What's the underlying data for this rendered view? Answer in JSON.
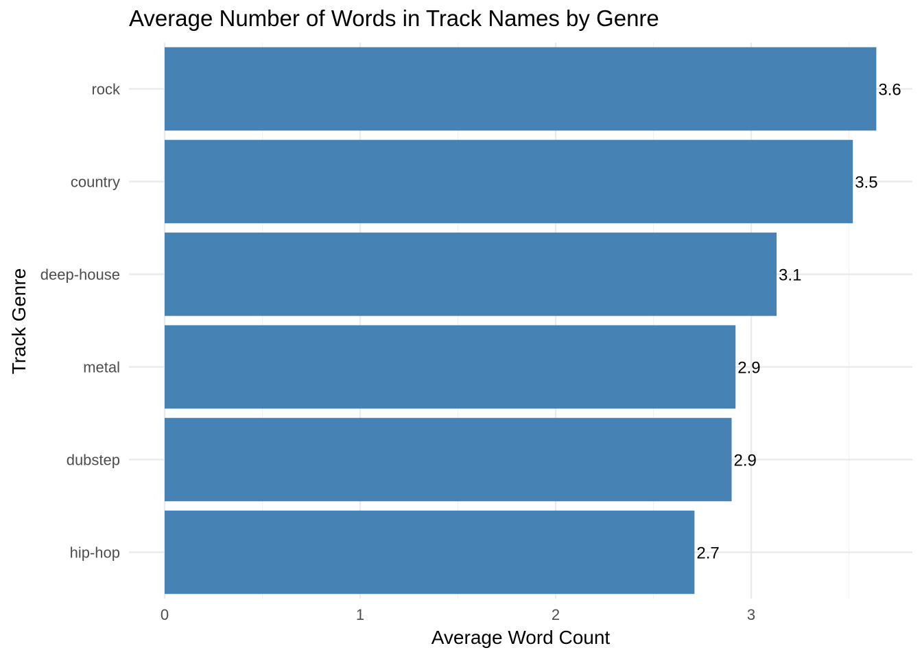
{
  "chart_data": {
    "type": "bar",
    "orientation": "horizontal",
    "title": "Average Number of Words in Track Names by Genre",
    "xlabel": "Average Word Count",
    "ylabel": "Track Genre",
    "categories": [
      "rock",
      "country",
      "deep-house",
      "metal",
      "dubstep",
      "hip-hop"
    ],
    "values": [
      3.64,
      3.52,
      3.13,
      2.92,
      2.9,
      2.71
    ],
    "value_labels": [
      "3.6",
      "3.5",
      "3.1",
      "2.9",
      "2.9",
      "2.7"
    ],
    "x_ticks": [
      "0",
      "1",
      "2",
      "3"
    ],
    "xlim": [
      0,
      3.7
    ],
    "grid": true,
    "bar_color": "#4682B4",
    "legend": "none"
  }
}
